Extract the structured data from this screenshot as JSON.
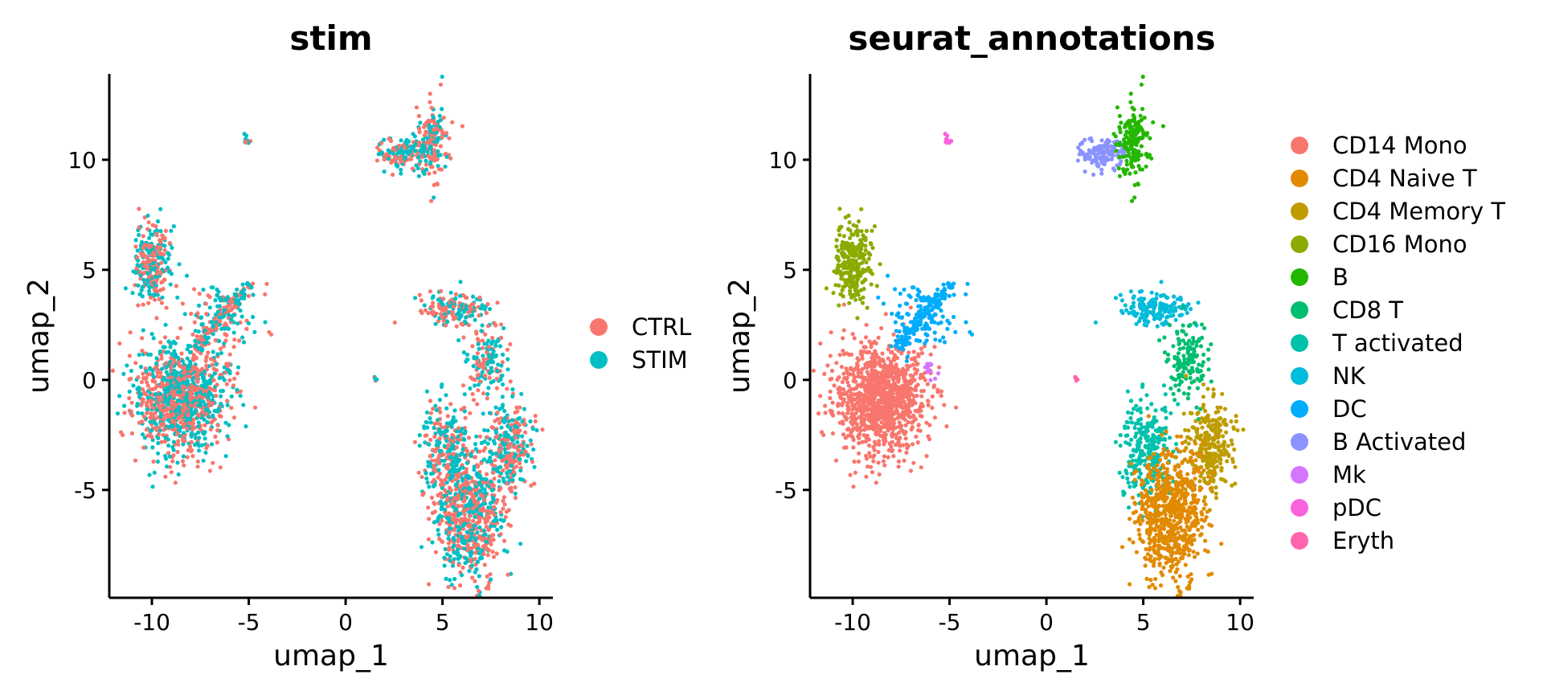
{
  "chart_data": [
    {
      "type": "scatter",
      "title": "stim",
      "xlabel": "umap_1",
      "ylabel": "umap_2",
      "xlim": [
        -12.2,
        10.7
      ],
      "ylim": [
        -9.9,
        13.9
      ],
      "xticks": [
        -10,
        -5,
        0,
        5,
        10
      ],
      "xtick_labels": [
        "-10",
        "-5",
        "0",
        "5",
        "10"
      ],
      "yticks": [
        -5,
        0,
        5,
        10
      ],
      "ytick_labels": [
        "-5",
        "0",
        "5",
        "10"
      ],
      "legend_position": "right",
      "series": [
        {
          "name": "CTRL",
          "color": "#F8766D"
        },
        {
          "name": "STIM",
          "color": "#00BFC4"
        }
      ],
      "clusters": [
        {
          "name": "CD14 Mono",
          "cx": -8.6,
          "cy": -0.8,
          "sx": 1.2,
          "sy": 1.2,
          "n": 1100
        },
        {
          "name": "CD16 Mono",
          "cx": -10.0,
          "cy": 5.2,
          "sx": 0.45,
          "sy": 0.9,
          "n": 280
        },
        {
          "name": "DC",
          "cx": -6.3,
          "cy": 2.8,
          "sx": 0.9,
          "sy": 0.9,
          "n": 120
        },
        {
          "name": "Mk",
          "cx": -6.0,
          "cy": 0.4,
          "sx": 0.3,
          "sy": 0.3,
          "n": 12
        },
        {
          "name": "pDC",
          "cx": -5.1,
          "cy": 10.9,
          "sx": 0.12,
          "sy": 0.15,
          "n": 10
        },
        {
          "name": "B Activated",
          "cx": 2.9,
          "cy": 10.3,
          "sx": 0.6,
          "sy": 0.35,
          "n": 130
        },
        {
          "name": "B",
          "cx": 4.5,
          "cy": 10.8,
          "sx": 0.4,
          "sy": 0.9,
          "n": 170
        },
        {
          "name": "NK",
          "cx": 5.6,
          "cy": 3.2,
          "sx": 0.9,
          "sy": 0.35,
          "n": 160
        },
        {
          "name": "CD8 T",
          "cx": 7.3,
          "cy": 1.0,
          "sx": 0.5,
          "sy": 0.9,
          "n": 150
        },
        {
          "name": "T activated",
          "cx": 5.2,
          "cy": -3.2,
          "sx": 0.7,
          "sy": 1.1,
          "n": 260
        },
        {
          "name": "CD4 Memory T",
          "cx": 8.5,
          "cy": -3.0,
          "sx": 0.55,
          "sy": 1.0,
          "n": 260
        },
        {
          "name": "CD4 Naive T",
          "cx": 6.4,
          "cy": -6.2,
          "sx": 0.9,
          "sy": 1.5,
          "n": 650
        },
        {
          "name": "Eryth",
          "cx": 1.5,
          "cy": 0.05,
          "sx": 0.08,
          "sy": 0.08,
          "n": 6
        }
      ]
    },
    {
      "type": "scatter",
      "title": "seurat_annotations",
      "xlabel": "umap_1",
      "ylabel": "umap_2",
      "xlim": [
        -12.2,
        10.7
      ],
      "ylim": [
        -9.9,
        13.9
      ],
      "xticks": [
        -10,
        -5,
        0,
        5,
        10
      ],
      "xtick_labels": [
        "-10",
        "-5",
        "0",
        "5",
        "10"
      ],
      "yticks": [
        -5,
        0,
        5,
        10
      ],
      "ytick_labels": [
        "-5",
        "0",
        "5",
        "10"
      ],
      "legend_position": "right",
      "series": [
        {
          "name": "CD14 Mono",
          "color": "#F8766D"
        },
        {
          "name": "CD4 Naive T",
          "color": "#E18A00"
        },
        {
          "name": "CD4 Memory T",
          "color": "#BE9C00"
        },
        {
          "name": "CD16 Mono",
          "color": "#8CAB00"
        },
        {
          "name": "B",
          "color": "#24B700"
        },
        {
          "name": "CD8 T",
          "color": "#00BE70"
        },
        {
          "name": "T activated",
          "color": "#00C1AB"
        },
        {
          "name": "NK",
          "color": "#00BBDA"
        },
        {
          "name": "DC",
          "color": "#00ACFC"
        },
        {
          "name": "B Activated",
          "color": "#8B93FF"
        },
        {
          "name": "Mk",
          "color": "#D575FE"
        },
        {
          "name": "pDC",
          "color": "#F962DD"
        },
        {
          "name": "Eryth",
          "color": "#FF65AC"
        }
      ]
    }
  ]
}
